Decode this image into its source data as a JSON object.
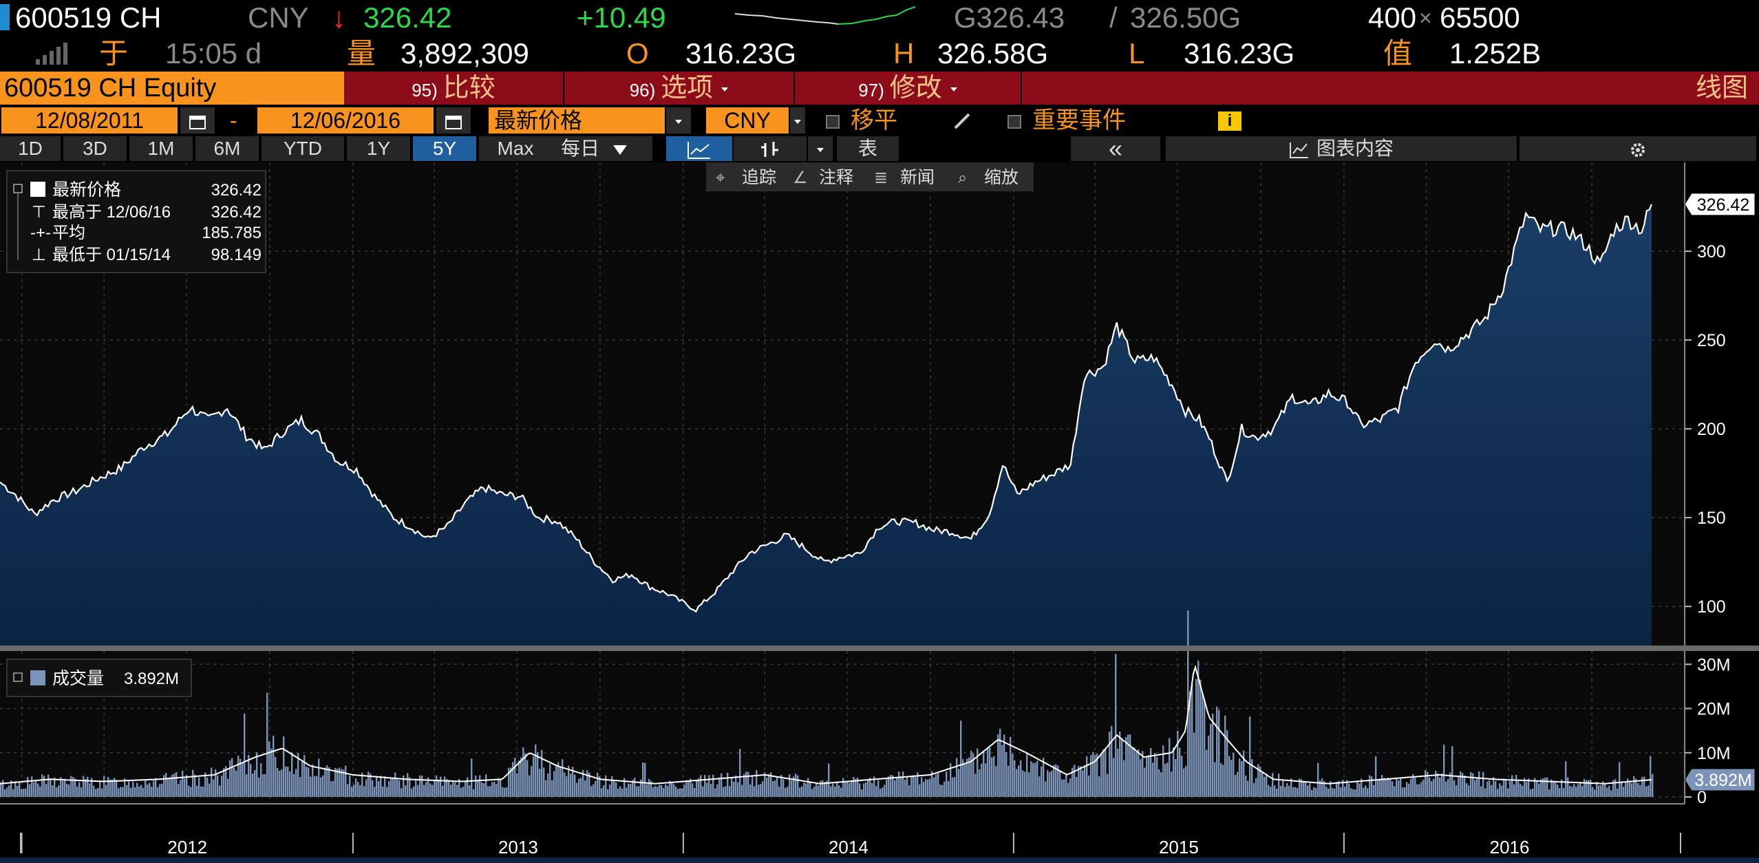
{
  "quote": {
    "ticker": "600519 CH",
    "currency": "CNY",
    "down_arrow": "↓",
    "last": "326.42",
    "change": "+10.49",
    "bid": "G326.43",
    "sep": "/",
    "ask": "326.50G",
    "size_bid": "400",
    "size_x": "×",
    "size_ask": "65500",
    "time_label": "于",
    "time": "15:05 d",
    "vol_label": "量",
    "volume": "3,892,309",
    "open_label": "O",
    "open": "316.23G",
    "high_label": "H",
    "high": "326.58G",
    "low_label": "L",
    "low": "316.23G",
    "value_label": "值",
    "value": "1.252B"
  },
  "command_bar": {
    "security": "600519 CH Equity",
    "compare_num": "95)",
    "compare": "比较",
    "options_num": "96)",
    "options": "选项",
    "edit_num": "97)",
    "edit": "修改",
    "view": "线图"
  },
  "controls": {
    "start_date": "12/08/2011",
    "dash": "-",
    "end_date": "12/06/2016",
    "field": "最新价格",
    "currency": "CNY",
    "move_avg": "移平",
    "events": "重要事件",
    "info": "i",
    "ranges": [
      "1D",
      "3D",
      "1M",
      "6M",
      "YTD",
      "1Y",
      "5Y",
      "Max"
    ],
    "active_range": "5Y",
    "frequency": "每日",
    "table": "表",
    "collapse": "«",
    "chart_content": "图表内容",
    "tools": [
      "追踪",
      "注释",
      "新闻",
      "缩放"
    ]
  },
  "legend": {
    "last_label": "最新价格",
    "last_value": "326.42",
    "high_label": "最高于 12/06/16",
    "high_value": "326.42",
    "avg_label": "平均",
    "avg_value": "185.785",
    "low_label": "最低于 01/15/14",
    "low_value": "98.149",
    "vol_label": "成交量",
    "vol_value": "3.892M"
  },
  "colors": {
    "orange": "#f7931e",
    "green": "#2bd94a",
    "red_bar": "#8b0d1a",
    "area_fill": "#0f2a4a",
    "volume_fill": "#7b94b8"
  },
  "chart_data": {
    "type": "area",
    "xlim": [
      "2011-12-08",
      "2016-12-06"
    ],
    "x_ticks": [
      "2012",
      "2013",
      "2014",
      "2015",
      "2016"
    ],
    "price": {
      "name": "最新价格",
      "ylim": [
        78,
        350
      ],
      "y_ticks": [
        100,
        150,
        200,
        250,
        300
      ],
      "last_tag": "326.42",
      "points": [
        [
          "2011-12-08",
          170
        ],
        [
          "2011-12-25",
          163
        ],
        [
          "2012-01-15",
          152
        ],
        [
          "2012-02-05",
          160
        ],
        [
          "2012-03-01",
          165
        ],
        [
          "2012-03-25",
          172
        ],
        [
          "2012-04-20",
          178
        ],
        [
          "2012-05-15",
          190
        ],
        [
          "2012-06-10",
          197
        ],
        [
          "2012-07-05",
          212
        ],
        [
          "2012-07-25",
          205
        ],
        [
          "2012-08-15",
          212
        ],
        [
          "2012-09-05",
          196
        ],
        [
          "2012-09-25",
          188
        ],
        [
          "2012-10-15",
          198
        ],
        [
          "2012-11-05",
          205
        ],
        [
          "2012-11-25",
          196
        ],
        [
          "2012-12-15",
          182
        ],
        [
          "2013-01-05",
          177
        ],
        [
          "2013-01-25",
          162
        ],
        [
          "2013-02-15",
          150
        ],
        [
          "2013-03-05",
          145
        ],
        [
          "2013-03-25",
          138
        ],
        [
          "2013-04-15",
          145
        ],
        [
          "2013-05-05",
          158
        ],
        [
          "2013-05-25",
          167
        ],
        [
          "2013-06-15",
          163
        ],
        [
          "2013-07-05",
          162
        ],
        [
          "2013-07-25",
          150
        ],
        [
          "2013-08-15",
          148
        ],
        [
          "2013-09-05",
          138
        ],
        [
          "2013-09-25",
          125
        ],
        [
          "2013-10-15",
          115
        ],
        [
          "2013-11-05",
          118
        ],
        [
          "2013-11-25",
          111
        ],
        [
          "2013-12-15",
          107
        ],
        [
          "2014-01-15",
          98.1
        ],
        [
          "2014-02-05",
          108
        ],
        [
          "2014-02-25",
          120
        ],
        [
          "2014-03-15",
          130
        ],
        [
          "2014-04-05",
          135
        ],
        [
          "2014-04-25",
          140
        ],
        [
          "2014-05-15",
          133
        ],
        [
          "2014-06-05",
          125
        ],
        [
          "2014-06-25",
          128
        ],
        [
          "2014-07-15",
          130
        ],
        [
          "2014-08-05",
          145
        ],
        [
          "2014-08-25",
          148
        ],
        [
          "2014-09-15",
          147
        ],
        [
          "2014-10-05",
          143
        ],
        [
          "2014-10-25",
          142
        ],
        [
          "2014-11-15",
          138
        ],
        [
          "2014-12-05",
          152
        ],
        [
          "2014-12-20",
          180
        ],
        [
          "2015-01-05",
          163
        ],
        [
          "2015-01-25",
          170
        ],
        [
          "2015-02-15",
          175
        ],
        [
          "2015-03-05",
          180
        ],
        [
          "2015-03-20",
          230
        ],
        [
          "2015-04-10",
          235
        ],
        [
          "2015-04-25",
          258
        ],
        [
          "2015-05-15",
          238
        ],
        [
          "2015-06-05",
          240
        ],
        [
          "2015-06-25",
          225
        ],
        [
          "2015-07-10",
          210
        ],
        [
          "2015-07-25",
          205
        ],
        [
          "2015-08-05",
          195
        ],
        [
          "2015-08-25",
          170
        ],
        [
          "2015-09-10",
          200
        ],
        [
          "2015-09-25",
          195
        ],
        [
          "2015-10-15",
          200
        ],
        [
          "2015-11-05",
          218
        ],
        [
          "2015-11-25",
          213
        ],
        [
          "2015-12-15",
          220
        ],
        [
          "2016-01-05",
          215
        ],
        [
          "2016-01-20",
          202
        ],
        [
          "2016-02-10",
          205
        ],
        [
          "2016-03-01",
          212
        ],
        [
          "2016-03-20",
          238
        ],
        [
          "2016-04-10",
          250
        ],
        [
          "2016-04-25",
          245
        ],
        [
          "2016-05-15",
          253
        ],
        [
          "2016-06-05",
          262
        ],
        [
          "2016-06-25",
          280
        ],
        [
          "2016-07-10",
          305
        ],
        [
          "2016-07-20",
          320
        ],
        [
          "2016-08-05",
          312
        ],
        [
          "2016-08-25",
          313
        ],
        [
          "2016-09-10",
          310
        ],
        [
          "2016-09-25",
          303
        ],
        [
          "2016-10-10",
          292
        ],
        [
          "2016-10-25",
          312
        ],
        [
          "2016-11-10",
          318
        ],
        [
          "2016-11-25",
          312
        ],
        [
          "2016-12-06",
          326.42
        ]
      ]
    },
    "volume": {
      "name": "成交量",
      "ylim": [
        0,
        33
      ],
      "y_ticks": [
        "0",
        "10M",
        "20M",
        "30M"
      ],
      "y_tick_values": [
        0,
        10,
        20,
        30
      ],
      "last_tag": "3.892M",
      "points": [
        [
          "2011-12-08",
          3
        ],
        [
          "2012-02-01",
          4
        ],
        [
          "2012-04-01",
          3.5
        ],
        [
          "2012-06-01",
          4
        ],
        [
          "2012-08-01",
          5
        ],
        [
          "2012-09-15",
          9
        ],
        [
          "2012-10-15",
          11
        ],
        [
          "2012-11-15",
          7
        ],
        [
          "2013-01-01",
          5
        ],
        [
          "2013-03-01",
          4
        ],
        [
          "2013-05-01",
          3.5
        ],
        [
          "2013-06-15",
          4
        ],
        [
          "2013-07-15",
          10
        ],
        [
          "2013-08-15",
          7
        ],
        [
          "2013-10-01",
          4
        ],
        [
          "2013-12-01",
          3
        ],
        [
          "2014-02-01",
          4
        ],
        [
          "2014-04-01",
          5
        ],
        [
          "2014-06-01",
          3
        ],
        [
          "2014-08-01",
          4
        ],
        [
          "2014-10-01",
          5
        ],
        [
          "2014-11-15",
          8
        ],
        [
          "2014-12-15",
          13
        ],
        [
          "2015-01-15",
          10
        ],
        [
          "2015-03-01",
          5
        ],
        [
          "2015-04-01",
          8
        ],
        [
          "2015-04-25",
          14
        ],
        [
          "2015-05-25",
          9
        ],
        [
          "2015-06-25",
          10
        ],
        [
          "2015-07-10",
          15
        ],
        [
          "2015-07-20",
          30
        ],
        [
          "2015-08-05",
          18
        ],
        [
          "2015-08-25",
          13
        ],
        [
          "2015-09-15",
          8
        ],
        [
          "2015-10-15",
          4
        ],
        [
          "2015-12-15",
          3
        ],
        [
          "2016-02-15",
          4
        ],
        [
          "2016-04-15",
          5
        ],
        [
          "2016-06-15",
          4
        ],
        [
          "2016-08-15",
          3.5
        ],
        [
          "2016-10-15",
          3
        ],
        [
          "2016-12-06",
          3.892
        ]
      ]
    }
  }
}
